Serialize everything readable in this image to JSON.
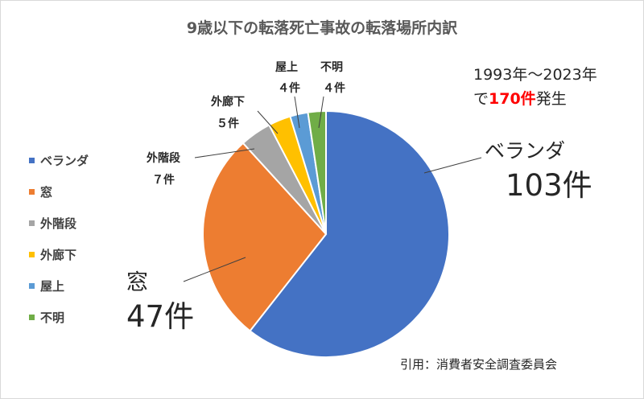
{
  "chart_data": {
    "type": "pie",
    "title": "9歳以下の転落死亡事故の転落場所内訳",
    "slices": [
      {
        "name": "ベランダ",
        "value": 103,
        "value_label": "103件",
        "color": "#4472c4"
      },
      {
        "name": "窓",
        "value": 47,
        "value_label": "47件",
        "color": "#ed7d31"
      },
      {
        "name": "外階段",
        "value": 7,
        "value_label": "７件",
        "color": "#a5a5a5"
      },
      {
        "name": "外廊下",
        "value": 5,
        "value_label": "５件",
        "color": "#ffc000"
      },
      {
        "name": "屋上",
        "value": 4,
        "value_label": "４件",
        "color": "#5b9bd5"
      },
      {
        "name": "不明",
        "value": 4,
        "value_label": "４件",
        "color": "#70ad47"
      }
    ],
    "legend_position": "left"
  },
  "annotation": {
    "period": "1993年～2023年",
    "prefix": "で",
    "count": "170件",
    "suffix": "発生"
  },
  "source": "引用：消費者安全調査委員会"
}
